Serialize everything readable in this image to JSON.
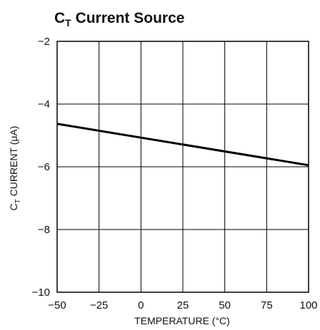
{
  "chart_data": {
    "type": "line",
    "title": {
      "main": "C",
      "sub": "T",
      "rest": " Current Source"
    },
    "xlabel": "TEMPERATURE (°C)",
    "ylabel": {
      "main": "C",
      "sub": "T",
      "rest": " CURRENT (μA)"
    },
    "xlim": [
      -50,
      100
    ],
    "ylim": [
      -10,
      -2
    ],
    "xticks": [
      -50,
      -25,
      0,
      25,
      50,
      75,
      100
    ],
    "xtick_labels": [
      "−50",
      "−25",
      "0",
      "25",
      "50",
      "75",
      "100"
    ],
    "yticks": [
      -2,
      -4,
      -6,
      -8,
      -10
    ],
    "ytick_labels": [
      "−2",
      "−4",
      "−6",
      "−8",
      "−10"
    ],
    "grid": true,
    "series": [
      {
        "x": [
          -50,
          100
        ],
        "y": [
          -4.63,
          -5.95
        ],
        "color": "#000000"
      }
    ]
  }
}
